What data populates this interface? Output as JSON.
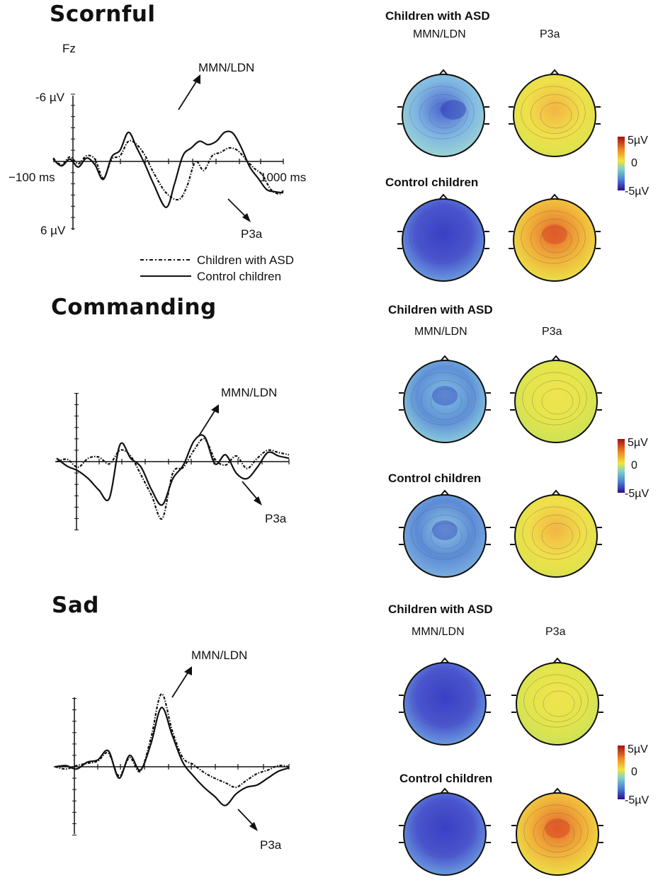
{
  "colors": {
    "line": "#111111",
    "scale_pos": "#b2182b",
    "scale_mid": "#f2e43c",
    "scale_neg": "#2b1d8f"
  },
  "legend": {
    "asd": "Children with ASD",
    "control": "Control children"
  },
  "colorbar": {
    "max_label": "5µV",
    "mid_label": "0",
    "min_label": "-5µV"
  },
  "chart_data": [
    {
      "type": "line",
      "title": "Scornful",
      "electrode": "Fz",
      "x_tick_labels": [
        "−100 ms",
        "1000 ms"
      ],
      "y_tick_labels": [
        "-6 µV",
        "6 µV"
      ],
      "xlim": [
        -100,
        1000
      ],
      "ylim": [
        -6,
        6
      ],
      "y_inverted": true,
      "annotations": [
        "MMN/LDN",
        "P3a"
      ],
      "series": [
        {
          "name": "Children with ASD",
          "style": "dotted",
          "x": [
            -100,
            -60,
            -20,
            20,
            60,
            100,
            140,
            180,
            220,
            260,
            300,
            340,
            380,
            440,
            500,
            540,
            580,
            620,
            660,
            700,
            740,
            780,
            820,
            860,
            900,
            940,
            980,
            1000
          ],
          "y": [
            0.3,
            -0.3,
            0.4,
            -0.2,
            0.5,
            0.2,
            -1.5,
            0.2,
            0.5,
            1.8,
            1.5,
            0.5,
            -1.0,
            -2.8,
            -3.4,
            -2.2,
            0.0,
            -0.8,
            0.5,
            0.8,
            1.2,
            1.0,
            0.2,
            -0.6,
            -1.2,
            -2.5,
            -2.9,
            -2.6
          ]
        },
        {
          "name": "Control children",
          "style": "solid",
          "x": [
            -100,
            -60,
            -20,
            20,
            60,
            100,
            140,
            180,
            220,
            260,
            300,
            340,
            380,
            440,
            480,
            520,
            560,
            600,
            640,
            680,
            720,
            760,
            800,
            840,
            880,
            920,
            960,
            1000
          ],
          "y": [
            0.2,
            -0.4,
            0.2,
            -0.5,
            0.3,
            -0.3,
            -1.6,
            0.4,
            1.0,
            2.6,
            1.2,
            -0.3,
            -2.0,
            -4.1,
            -2.0,
            0.5,
            1.2,
            1.8,
            1.5,
            1.8,
            2.6,
            2.5,
            1.2,
            -0.5,
            -1.5,
            -2.5,
            -2.7,
            -2.8
          ]
        }
      ]
    },
    {
      "type": "line",
      "title": "Commanding",
      "annotations": [
        "MMN/LDN",
        "P3a"
      ],
      "series": [
        {
          "name": "Children with ASD",
          "style": "dotted",
          "x": [
            -100,
            -50,
            0,
            50,
            100,
            150,
            200,
            250,
            300,
            350,
            400,
            450,
            500,
            550,
            600,
            650,
            700,
            750,
            800,
            850,
            900,
            950,
            1000
          ],
          "y": [
            0.0,
            0.2,
            -0.5,
            0.3,
            0.4,
            -0.2,
            1.0,
            0.5,
            -1.2,
            -3.0,
            -5.0,
            -1.0,
            -0.5,
            1.0,
            2.0,
            0.2,
            -0.3,
            0.5,
            -0.6,
            0.3,
            1.0,
            0.8,
            0.6
          ]
        },
        {
          "name": "Control children",
          "style": "solid",
          "x": [
            -100,
            -50,
            0,
            50,
            100,
            150,
            200,
            250,
            300,
            350,
            400,
            450,
            500,
            550,
            600,
            650,
            700,
            750,
            800,
            850,
            900,
            950,
            1000
          ],
          "y": [
            0.3,
            -0.4,
            -0.8,
            -1.5,
            -2.5,
            -3.2,
            1.5,
            0.3,
            -0.5,
            -2.5,
            -3.8,
            -1.5,
            -0.3,
            1.8,
            2.2,
            -0.2,
            0.6,
            -1.0,
            -1.5,
            -0.5,
            0.8,
            0.5,
            0.3
          ]
        }
      ]
    },
    {
      "type": "line",
      "title": "Sad",
      "annotations": [
        "MMN/LDN",
        "P3a"
      ],
      "series": [
        {
          "name": "Children with ASD",
          "style": "dotted",
          "x": [
            -100,
            -50,
            0,
            50,
            100,
            150,
            200,
            250,
            300,
            350,
            400,
            450,
            500,
            550,
            600,
            650,
            700,
            750,
            800,
            850,
            900,
            950,
            1000
          ],
          "y": [
            0.0,
            -0.2,
            0.1,
            0.3,
            0.5,
            1.2,
            -0.8,
            0.8,
            -0.4,
            2.5,
            6.4,
            3.2,
            0.8,
            0.2,
            -0.5,
            -1.0,
            -1.4,
            -1.8,
            -1.2,
            -0.6,
            -0.3,
            0.1,
            0.0
          ]
        },
        {
          "name": "Control children",
          "style": "solid",
          "x": [
            -100,
            -50,
            0,
            50,
            100,
            150,
            200,
            250,
            300,
            350,
            400,
            450,
            500,
            550,
            600,
            650,
            700,
            750,
            800,
            850,
            900,
            950,
            1000
          ],
          "y": [
            0.0,
            0.1,
            -0.2,
            0.4,
            0.6,
            1.4,
            -1.0,
            1.0,
            -0.3,
            2.0,
            5.2,
            2.8,
            0.4,
            -0.8,
            -1.8,
            -2.6,
            -3.4,
            -2.4,
            -1.8,
            -1.6,
            -1.0,
            -0.4,
            -0.1
          ]
        }
      ]
    }
  ],
  "topomaps": [
    {
      "panel": "Scornful",
      "groups": [
        {
          "label": "Children with ASD",
          "maps": [
            {
              "component": "MMN/LDN",
              "pattern": "negative-right"
            },
            {
              "component": "P3a",
              "pattern": "positive-center-weak"
            }
          ]
        },
        {
          "label": "Control children",
          "maps": [
            {
              "component": "MMN/LDN",
              "pattern": "negative-strong"
            },
            {
              "component": "P3a",
              "pattern": "positive-strong"
            }
          ]
        }
      ]
    },
    {
      "panel": "Commanding",
      "groups": [
        {
          "label": "Children with ASD",
          "maps": [
            {
              "component": "MMN/LDN",
              "pattern": "negative-sides"
            },
            {
              "component": "P3a",
              "pattern": "positive-weak"
            }
          ]
        },
        {
          "label": "Control children",
          "maps": [
            {
              "component": "MMN/LDN",
              "pattern": "negative-mixed"
            },
            {
              "component": "P3a",
              "pattern": "positive-center-weak"
            }
          ]
        }
      ]
    },
    {
      "panel": "Sad",
      "groups": [
        {
          "label": "Children with ASD",
          "maps": [
            {
              "component": "MMN/LDN",
              "pattern": "negative-strong"
            },
            {
              "component": "P3a",
              "pattern": "positive-weak"
            }
          ]
        },
        {
          "label": "Control children",
          "maps": [
            {
              "component": "MMN/LDN",
              "pattern": "negative-strong"
            },
            {
              "component": "P3a",
              "pattern": "positive-strong"
            }
          ]
        }
      ]
    }
  ]
}
